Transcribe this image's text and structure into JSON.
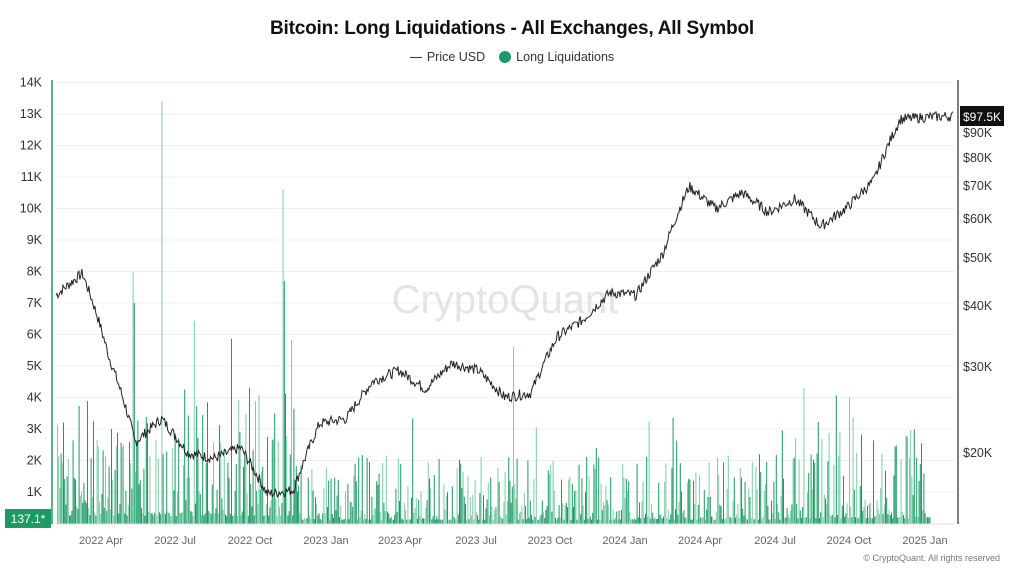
{
  "header": {
    "title": "Bitcoin: Long Liquidations - All Exchanges, All Symbol"
  },
  "legend": {
    "items": [
      {
        "label": "Price USD",
        "marker": "line",
        "color": "#333333"
      },
      {
        "label": "Long Liquidations",
        "marker": "dot",
        "color": "#1a9a64"
      }
    ]
  },
  "watermark": "CryptoQuant",
  "footer": {
    "copyright": "© CryptoQuant. All rights reserved"
  },
  "axes": {
    "left": {
      "ticks": [
        "14K",
        "13K",
        "12K",
        "11K",
        "10K",
        "9K",
        "8K",
        "7K",
        "6K",
        "5K",
        "4K",
        "3K",
        "2K",
        "1K"
      ],
      "current_value_label": "137.1*"
    },
    "right": {
      "ticks": [
        "$90K",
        "$80K",
        "$70K",
        "$60K",
        "$50K",
        "$40K",
        "$30K",
        "$20K"
      ],
      "current_value_label": "$97.5K"
    },
    "x": {
      "ticks": [
        "2022 Apr",
        "2022 Jul",
        "2022 Oct",
        "2023 Jan",
        "2023 Apr",
        "2023 Jul",
        "2023 Oct",
        "2024 Jan",
        "2024 Apr",
        "2024 Jul",
        "2024 Oct",
        "2025 Jan"
      ]
    }
  },
  "colors": {
    "bar": "#1a9a64",
    "bar_light": "#7fcca8",
    "price_line": "#222222",
    "left_axis_line": "#1a9a64",
    "right_axis_line": "#555555",
    "badge_left_bg": "#1a9a64",
    "badge_right_bg": "#111111"
  },
  "chart_data": {
    "type": "bar+line",
    "title": "Bitcoin: Long Liquidations - All Exchanges, All Symbol",
    "xlabel": "",
    "ylabel_left": "Long Liquidations",
    "ylabel_right": "Price USD",
    "ylim_left": [
      0,
      14000
    ],
    "yscale_right": "log",
    "ylim_right": [
      13000,
      105000
    ],
    "grid": true,
    "legend_position": "top-center",
    "categories": [
      "2022-03",
      "2022-04",
      "2022-05",
      "2022-06",
      "2022-07",
      "2022-08",
      "2022-09",
      "2022-10",
      "2022-11",
      "2022-12",
      "2023-01",
      "2023-02",
      "2023-03",
      "2023-04",
      "2023-05",
      "2023-06",
      "2023-07",
      "2023-08",
      "2023-09",
      "2023-10",
      "2023-11",
      "2023-12",
      "2024-01",
      "2024-02",
      "2024-03",
      "2024-04",
      "2024-05",
      "2024-06",
      "2024-07",
      "2024-08",
      "2024-09",
      "2024-10",
      "2024-11",
      "2024-12",
      "2025-01"
    ],
    "series": [
      {
        "name": "Price USD",
        "axis": "right",
        "type": "line",
        "values": [
          42000,
          46500,
          31500,
          21000,
          23500,
          20000,
          19500,
          20500,
          16500,
          16800,
          23000,
          23500,
          28000,
          29500,
          27000,
          30500,
          29500,
          26000,
          26500,
          34500,
          37500,
          42500,
          42000,
          51000,
          70000,
          63000,
          68000,
          62000,
          66000,
          58000,
          63500,
          72000,
          96000,
          97000,
          97500
        ]
      },
      {
        "name": "Long Liquidations",
        "axis": "left",
        "type": "bar",
        "notable_spikes": [
          {
            "date": "2022-05",
            "value": 8000
          },
          {
            "date": "2022-06",
            "value": 13400
          },
          {
            "date": "2022-11",
            "value": 10600
          },
          {
            "date": "2023-08",
            "value": 5600
          },
          {
            "date": "2024-08",
            "value": 4300
          },
          {
            "date": "2024-12",
            "value": 4000
          }
        ],
        "typical_range": [
          200,
          3000
        ],
        "latest_value": 137.1
      }
    ],
    "left_ticks": [
      1000,
      2000,
      3000,
      4000,
      5000,
      6000,
      7000,
      8000,
      9000,
      10000,
      11000,
      12000,
      13000,
      14000
    ],
    "right_ticks": [
      20000,
      30000,
      40000,
      50000,
      60000,
      70000,
      80000,
      90000
    ],
    "x_tick_labels": [
      "2022 Apr",
      "2022 Jul",
      "2022 Oct",
      "2023 Jan",
      "2023 Apr",
      "2023 Jul",
      "2023 Oct",
      "2024 Jan",
      "2024 Apr",
      "2024 Jul",
      "2024 Oct",
      "2025 Jan"
    ]
  }
}
